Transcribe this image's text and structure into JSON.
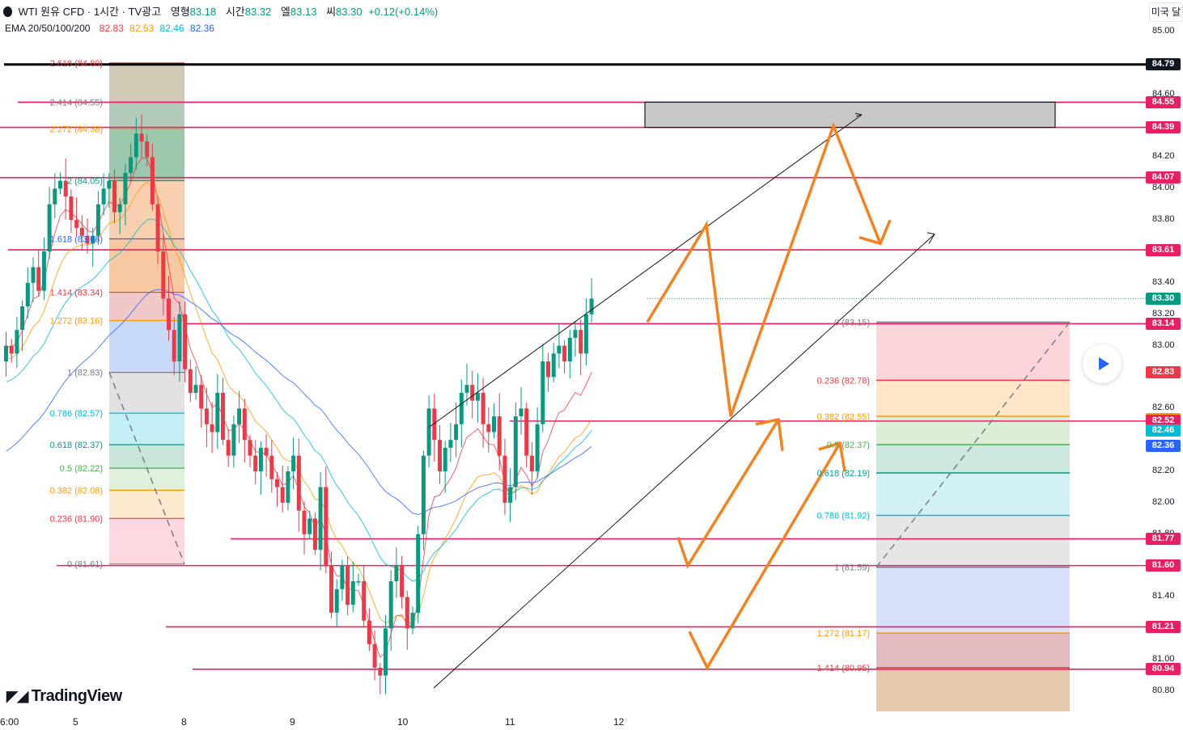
{
  "header": {
    "symbol": "WTI 원유 CFD · 1시간 · TV광고",
    "open_label": "영형",
    "open": "83.18",
    "high_label": "시간",
    "high": "83.32",
    "low_label": "엘",
    "low": "83.13",
    "close_label": "씨",
    "close": "83.30",
    "change": "+0.12(+0.14%)"
  },
  "ema": {
    "label": "EMA 20/50/100/200",
    "values": [
      "82.83",
      "82.53",
      "82.46",
      "82.36"
    ],
    "colors": [
      "#f23645",
      "#ff9800",
      "#00bcd4",
      "#2962ff"
    ]
  },
  "currency_button": "미국 달",
  "brand": "TradingView",
  "chart_data": {
    "type": "candlestick",
    "ylim": [
      80.7,
      85.1
    ],
    "x_ticks": [
      "6:00",
      "5",
      "8",
      "9",
      "10",
      "11",
      "12"
    ],
    "y_ticks": [
      "85.00",
      "84.60",
      "84.20",
      "84.00",
      "83.80",
      "83.40",
      "83.20",
      "83.00",
      "82.60",
      "82.20",
      "82.00",
      "81.80",
      "81.40",
      "81.00",
      "80.80"
    ],
    "closes": [
      83.0,
      82.95,
      83.1,
      83.25,
      83.4,
      83.5,
      83.35,
      83.6,
      83.9,
      84.0,
      84.05,
      83.95,
      83.8,
      83.75,
      83.7,
      83.65,
      83.7,
      83.9,
      84.0,
      84.05,
      83.85,
      83.9,
      84.1,
      84.2,
      84.35,
      84.3,
      84.2,
      83.9,
      83.6,
      83.3,
      83.1,
      82.9,
      83.2,
      82.85,
      82.7,
      82.75,
      82.6,
      82.5,
      82.45,
      82.7,
      82.4,
      82.3,
      82.5,
      82.6,
      82.4,
      82.3,
      82.2,
      82.35,
      82.3,
      82.15,
      82.1,
      82.0,
      82.2,
      82.3,
      81.95,
      81.8,
      81.9,
      81.7,
      82.1,
      81.6,
      81.3,
      81.45,
      81.6,
      81.35,
      81.5,
      81.5,
      81.25,
      81.1,
      80.95,
      80.9,
      81.2,
      81.5,
      81.6,
      81.4,
      81.2,
      81.3,
      81.8,
      82.3,
      82.6,
      82.4,
      82.2,
      82.35,
      82.4,
      82.5,
      82.7,
      82.75,
      82.65,
      82.7,
      82.5,
      82.45,
      82.55,
      82.3,
      82.0,
      82.1,
      82.55,
      82.6,
      82.3,
      82.2,
      82.5,
      82.9,
      82.8,
      82.95,
      83.0,
      82.9,
      83.05,
      83.1,
      82.95,
      83.2,
      83.3
    ],
    "emas": [
      {
        "name": "EMA 20",
        "color": "#f23645",
        "last": 82.83
      },
      {
        "name": "EMA 50",
        "color": "#ff9800",
        "last": 82.53
      },
      {
        "name": "EMA 100",
        "color": "#00bcd4",
        "last": 82.46
      },
      {
        "name": "EMA 200",
        "color": "#2962ff",
        "last": 82.36
      }
    ],
    "horizontal_levels": [
      {
        "price": 84.79,
        "label": "84.79",
        "color": "#000000"
      },
      {
        "price": 84.55,
        "label": "84.55",
        "color": "#e91e63"
      },
      {
        "price": 84.39,
        "label": "84.39",
        "color": "#e91e63"
      },
      {
        "price": 84.07,
        "label": "84.07",
        "color": "#e91e63"
      },
      {
        "price": 83.61,
        "label": "83.61",
        "color": "#e91e63"
      },
      {
        "price": 83.14,
        "label": "83.14",
        "color": "#e91e63"
      },
      {
        "price": 82.52,
        "label": "82.52",
        "color": "#e91e63"
      },
      {
        "price": 81.77,
        "label": "81.77",
        "color": "#e91e63"
      },
      {
        "price": 81.6,
        "label": "81.60",
        "color": "#e91e63"
      },
      {
        "price": 81.21,
        "label": "81.21",
        "color": "#e91e63"
      },
      {
        "price": 80.94,
        "label": "80.94",
        "color": "#e91e63"
      }
    ],
    "price_labels": [
      {
        "text": "84.79",
        "price": 84.79,
        "bg": "#131722"
      },
      {
        "text": "84.55",
        "price": 84.55,
        "bg": "#e91e63"
      },
      {
        "text": "84.39",
        "price": 84.39,
        "bg": "#e91e63"
      },
      {
        "text": "84.07",
        "price": 84.07,
        "bg": "#e91e63"
      },
      {
        "text": "83.61",
        "price": 83.61,
        "bg": "#e91e63"
      },
      {
        "text": "83.30",
        "price": 83.3,
        "bg": "#089981"
      },
      {
        "text": "83.14",
        "price": 83.14,
        "bg": "#e91e63"
      },
      {
        "text": "82.83",
        "price": 82.83,
        "bg": "#f23645"
      },
      {
        "text": "82.53",
        "price": 82.53,
        "bg": "#ff9800"
      },
      {
        "text": "82.52",
        "price": 82.52,
        "bg": "#e91e63"
      },
      {
        "text": "82.46",
        "price": 82.46,
        "bg": "#00bcd4"
      },
      {
        "text": "82.36",
        "price": 82.36,
        "bg": "#2962ff"
      },
      {
        "text": "81.77",
        "price": 81.77,
        "bg": "#e91e63"
      },
      {
        "text": "81.60",
        "price": 81.6,
        "bg": "#e91e63"
      },
      {
        "text": "81.21",
        "price": 81.21,
        "bg": "#e91e63"
      },
      {
        "text": "80.94",
        "price": 80.94,
        "bg": "#e91e63"
      }
    ],
    "fib_left": [
      {
        "text": "2.618 (84.80)",
        "price": 84.8,
        "color": "#f23645"
      },
      {
        "text": "2.414 (84.55)",
        "price": 84.55,
        "color": "#787b86"
      },
      {
        "text": "2.272 (84.38)",
        "price": 84.38,
        "color": "#ff9800"
      },
      {
        "text": "2 (84.05)",
        "price": 84.05,
        "color": "#089981"
      },
      {
        "text": "1.618 (83.68)",
        "price": 83.68,
        "color": "#2962ff"
      },
      {
        "text": "1.414 (83.34)",
        "price": 83.34,
        "color": "#f23645"
      },
      {
        "text": "1.272 (83.16)",
        "price": 83.16,
        "color": "#ff9800"
      },
      {
        "text": "1 (82.83)",
        "price": 82.83,
        "color": "#787b86"
      },
      {
        "text": "0.786 (82.57)",
        "price": 82.57,
        "color": "#00bcd4"
      },
      {
        "text": "0.618 (82.37)",
        "price": 82.37,
        "color": "#089981"
      },
      {
        "text": "0.5 (82.22)",
        "price": 82.22,
        "color": "#4caf50"
      },
      {
        "text": "0.382 (82.08)",
        "price": 82.08,
        "color": "#ff9800"
      },
      {
        "text": "0.236 (81.90)",
        "price": 81.9,
        "color": "#f23645"
      },
      {
        "text": "0 (81.61)",
        "price": 81.61,
        "color": "#787b86"
      }
    ],
    "fib_right": [
      {
        "text": "0 (83.15)",
        "price": 83.15,
        "color": "#787b86"
      },
      {
        "text": "0.236 (82.78)",
        "price": 82.78,
        "color": "#f23645"
      },
      {
        "text": "0.382 (82.55)",
        "price": 82.55,
        "color": "#ff9800"
      },
      {
        "text": "0.5 (82.37)",
        "price": 82.37,
        "color": "#4caf50"
      },
      {
        "text": "0.618 (82.19)",
        "price": 82.19,
        "color": "#089981"
      },
      {
        "text": "0.786 (81.92)",
        "price": 81.92,
        "color": "#00bcd4"
      },
      {
        "text": "1 (81.59)",
        "price": 81.59,
        "color": "#787b86"
      },
      {
        "text": "1.272 (81.17)",
        "price": 81.17,
        "color": "#ff9800"
      },
      {
        "text": "1.414 (80.95)",
        "price": 80.95,
        "color": "#f23645"
      }
    ],
    "target_zone": [
      84.39,
      84.55
    ],
    "current_price": 83.3
  }
}
